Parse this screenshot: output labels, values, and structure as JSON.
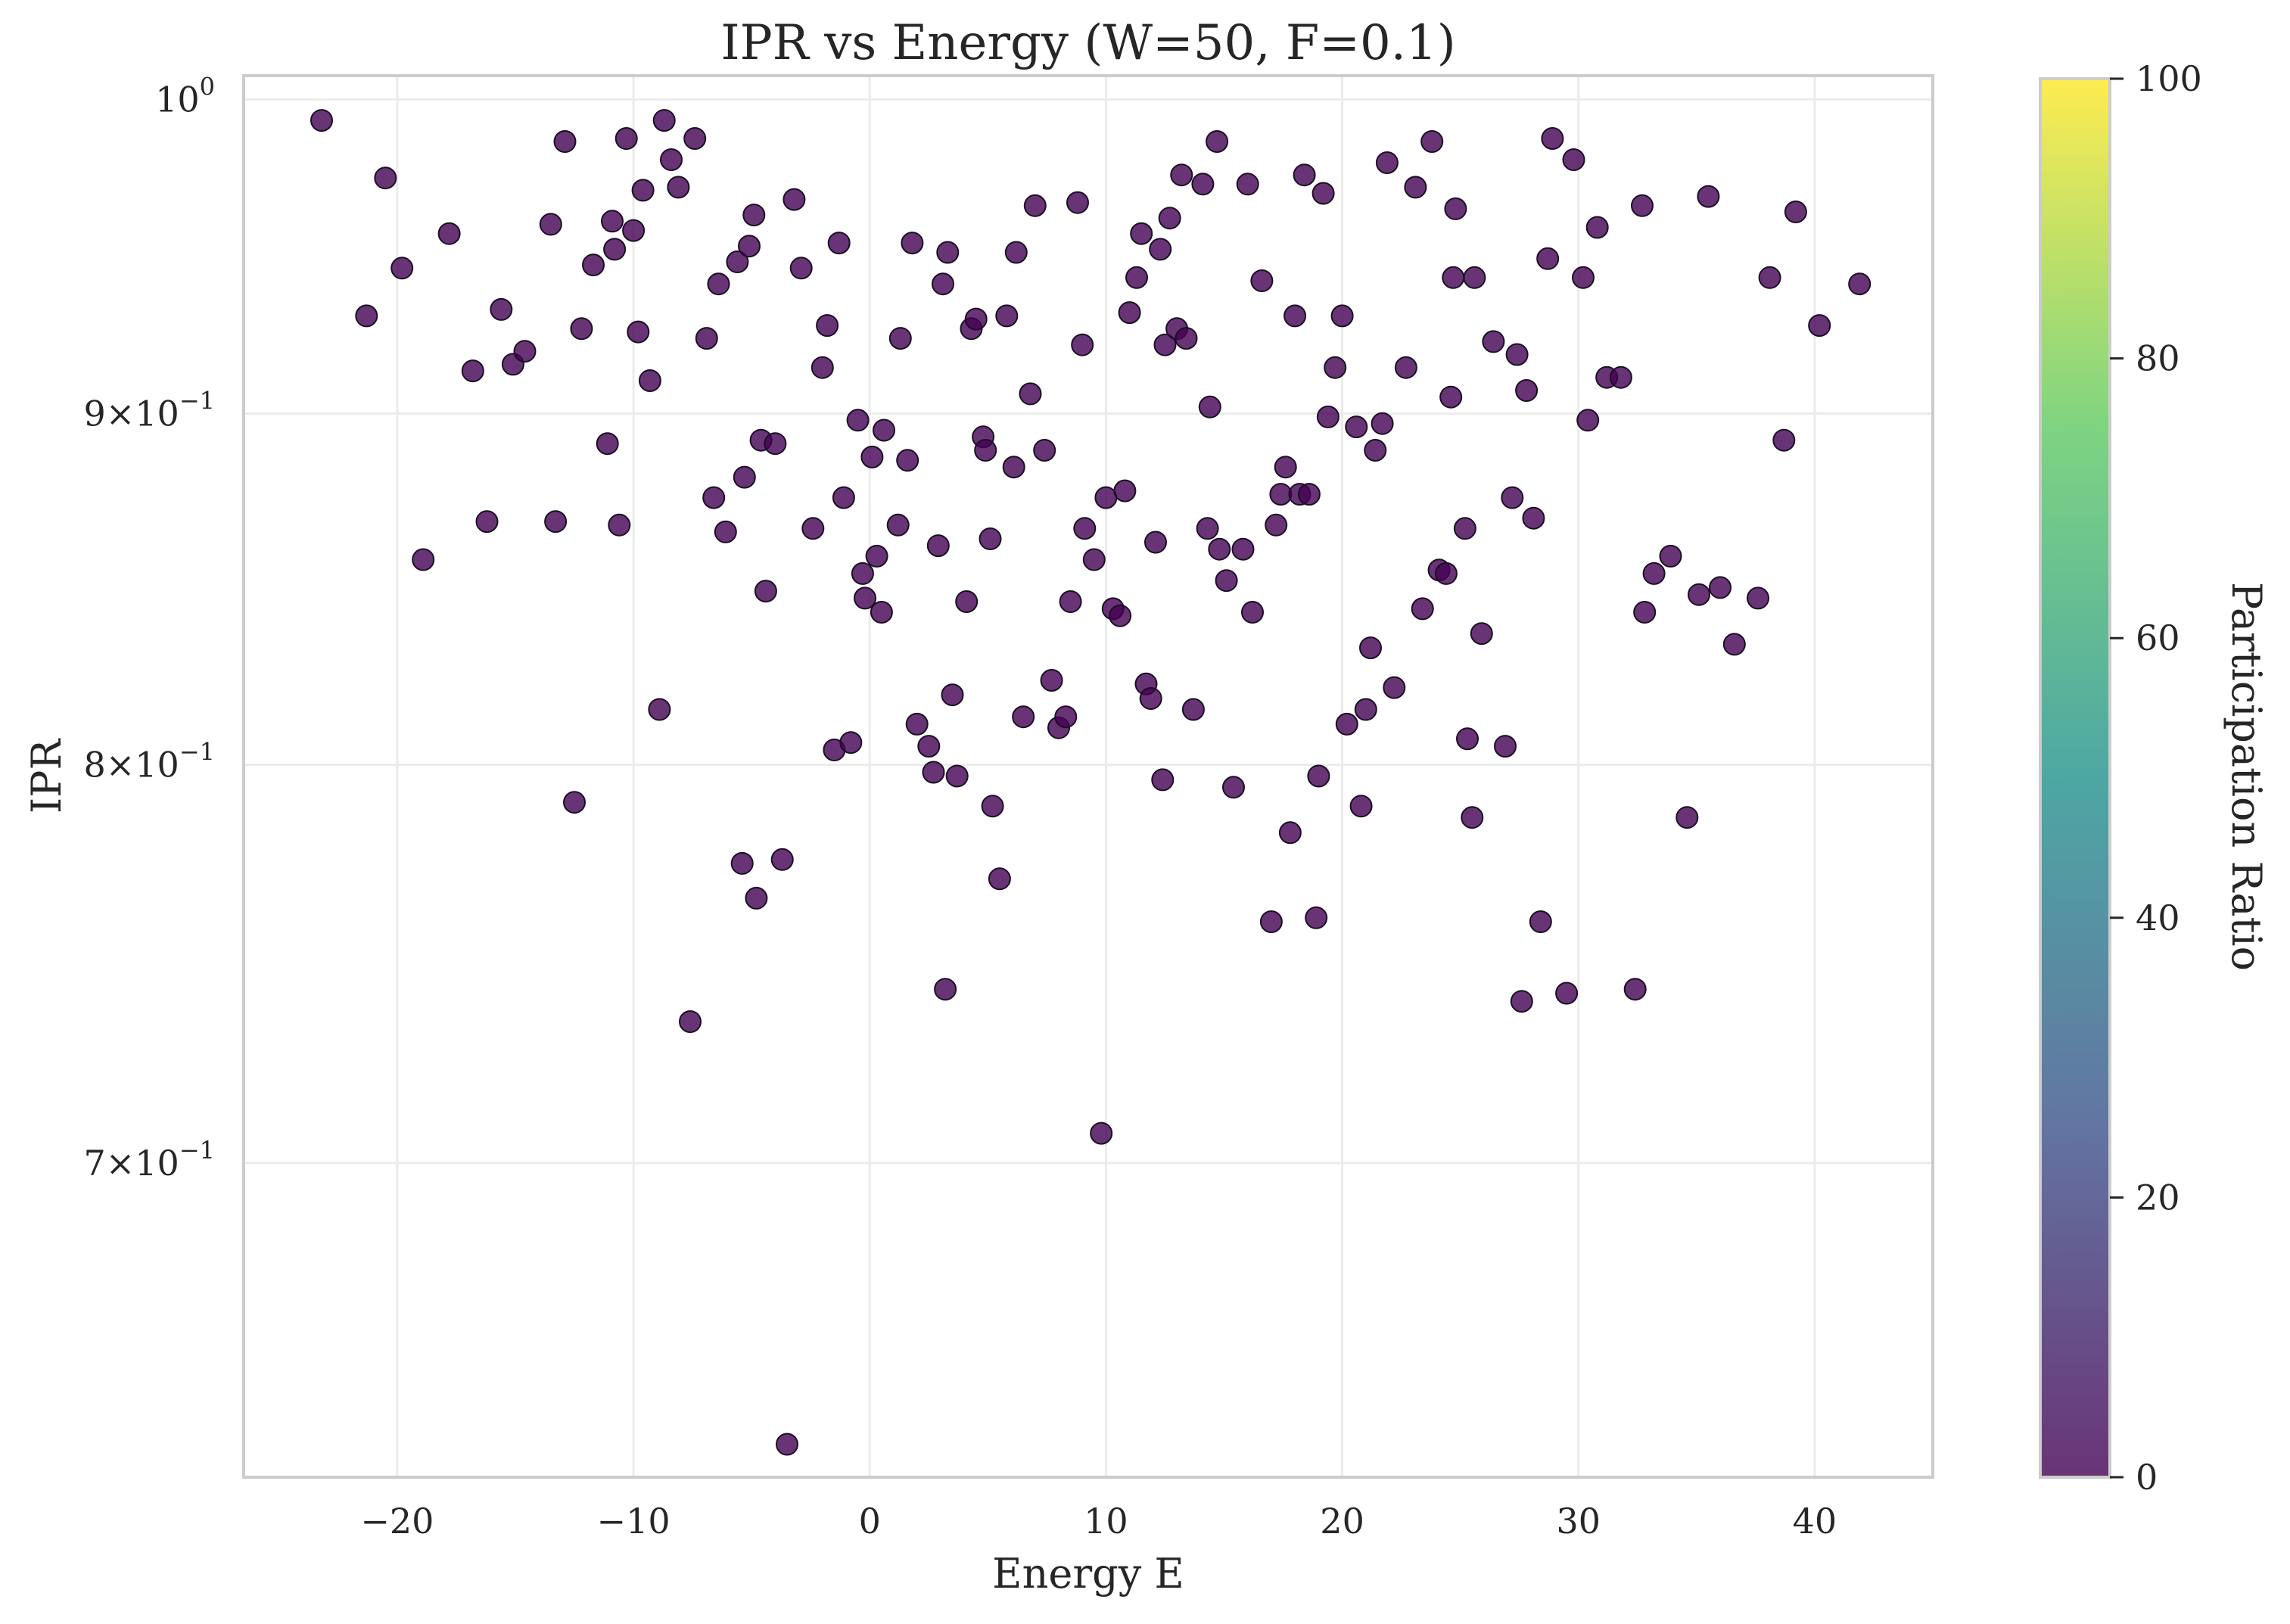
{
  "chart_data": {
    "type": "scatter",
    "title": "IPR vs Energy (W=50, F=0.1)",
    "xlabel": "Energy E",
    "ylabel": "IPR",
    "xlim": [
      -26.5,
      45
    ],
    "ylim": [
      0.63,
      1.008
    ],
    "yscale": "log",
    "grid": true,
    "x_ticks": [
      {
        "value": -20,
        "label": "−20"
      },
      {
        "value": -10,
        "label": "−10"
      },
      {
        "value": 0,
        "label": "0"
      },
      {
        "value": 10,
        "label": "10"
      },
      {
        "value": 20,
        "label": "20"
      },
      {
        "value": 30,
        "label": "30"
      },
      {
        "value": 40,
        "label": "40"
      }
    ],
    "y_ticks": [
      {
        "value": 1.0,
        "base": "10",
        "exp": "0"
      },
      {
        "value": 0.9,
        "base": "9×10",
        "exp": "−1"
      },
      {
        "value": 0.8,
        "base": "8×10",
        "exp": "−1"
      },
      {
        "value": 0.7,
        "base": "7×10",
        "exp": "−1"
      }
    ],
    "colorbar": {
      "label": "Participation Ratio",
      "range": [
        0,
        100
      ],
      "ticks": [
        "0",
        "20",
        "40",
        "60",
        "80",
        "100"
      ],
      "colormap": "viridis",
      "colors": [
        "#440154",
        "#3b528b",
        "#21918c",
        "#5ec962",
        "#fde725"
      ]
    },
    "marker_color": "#440154",
    "marker_opacity": 0.8,
    "points": [
      [
        -23.2,
        0.993
      ],
      [
        -21.3,
        0.93
      ],
      [
        -20.5,
        0.974
      ],
      [
        -19.8,
        0.945
      ],
      [
        -18.9,
        0.857
      ],
      [
        -17.8,
        0.956
      ],
      [
        -16.8,
        0.913
      ],
      [
        -16.2,
        0.868
      ],
      [
        -15.6,
        0.932
      ],
      [
        -15.1,
        0.915
      ],
      [
        -14.6,
        0.919
      ],
      [
        -13.5,
        0.959
      ],
      [
        -13.3,
        0.868
      ],
      [
        -12.9,
        0.986
      ],
      [
        -12.5,
        0.79
      ],
      [
        -12.2,
        0.926
      ],
      [
        -11.7,
        0.946
      ],
      [
        -11.1,
        0.891
      ],
      [
        -10.9,
        0.96
      ],
      [
        -10.8,
        0.951
      ],
      [
        -10.6,
        0.867
      ],
      [
        -10.3,
        0.987
      ],
      [
        -10.0,
        0.957
      ],
      [
        -9.8,
        0.925
      ],
      [
        -9.6,
        0.97
      ],
      [
        -9.3,
        0.91
      ],
      [
        -8.9,
        0.815
      ],
      [
        -8.7,
        0.993
      ],
      [
        -8.4,
        0.98
      ],
      [
        -8.1,
        0.971
      ],
      [
        -7.6,
        0.734
      ],
      [
        -7.4,
        0.987
      ],
      [
        -6.9,
        0.923
      ],
      [
        -6.6,
        0.875
      ],
      [
        -6.4,
        0.94
      ],
      [
        -6.1,
        0.865
      ],
      [
        -5.6,
        0.947
      ],
      [
        -5.4,
        0.774
      ],
      [
        -5.3,
        0.881
      ],
      [
        -5.1,
        0.952
      ],
      [
        -4.9,
        0.962
      ],
      [
        -4.8,
        0.765
      ],
      [
        -4.6,
        0.892
      ],
      [
        -4.4,
        0.848
      ],
      [
        -4.0,
        0.891
      ],
      [
        -3.7,
        0.775
      ],
      [
        -3.5,
        0.637
      ],
      [
        -3.2,
        0.967
      ],
      [
        -2.9,
        0.945
      ],
      [
        -2.4,
        0.866
      ],
      [
        -2.0,
        0.914
      ],
      [
        -1.8,
        0.927
      ],
      [
        -1.5,
        0.804
      ],
      [
        -1.3,
        0.953
      ],
      [
        -1.1,
        0.875
      ],
      [
        -0.8,
        0.806
      ],
      [
        -0.5,
        0.898
      ],
      [
        -0.3,
        0.853
      ],
      [
        -0.2,
        0.846
      ],
      [
        0.1,
        0.887
      ],
      [
        0.3,
        0.858
      ],
      [
        0.5,
        0.842
      ],
      [
        0.6,
        0.895
      ],
      [
        1.2,
        0.867
      ],
      [
        1.3,
        0.923
      ],
      [
        1.6,
        0.886
      ],
      [
        1.8,
        0.953
      ],
      [
        2.0,
        0.811
      ],
      [
        2.5,
        0.805
      ],
      [
        2.7,
        0.798
      ],
      [
        2.9,
        0.861
      ],
      [
        3.1,
        0.94
      ],
      [
        3.2,
        0.742
      ],
      [
        3.3,
        0.95
      ],
      [
        3.5,
        0.819
      ],
      [
        3.7,
        0.797
      ],
      [
        4.1,
        0.845
      ],
      [
        4.3,
        0.926
      ],
      [
        4.5,
        0.929
      ],
      [
        4.8,
        0.893
      ],
      [
        4.9,
        0.889
      ],
      [
        5.1,
        0.863
      ],
      [
        5.2,
        0.789
      ],
      [
        5.5,
        0.77
      ],
      [
        5.8,
        0.93
      ],
      [
        6.1,
        0.884
      ],
      [
        6.2,
        0.95
      ],
      [
        6.5,
        0.813
      ],
      [
        6.8,
        0.906
      ],
      [
        7.0,
        0.965
      ],
      [
        7.4,
        0.889
      ],
      [
        7.7,
        0.823
      ],
      [
        8.0,
        0.81
      ],
      [
        8.3,
        0.813
      ],
      [
        8.5,
        0.845
      ],
      [
        8.8,
        0.966
      ],
      [
        9.0,
        0.921
      ],
      [
        9.1,
        0.866
      ],
      [
        9.5,
        0.857
      ],
      [
        9.8,
        0.707
      ],
      [
        10.0,
        0.875
      ],
      [
        10.3,
        0.843
      ],
      [
        10.6,
        0.841
      ],
      [
        10.8,
        0.877
      ],
      [
        11.0,
        0.931
      ],
      [
        11.3,
        0.942
      ],
      [
        11.5,
        0.956
      ],
      [
        11.7,
        0.822
      ],
      [
        11.9,
        0.818
      ],
      [
        12.1,
        0.862
      ],
      [
        12.3,
        0.951
      ],
      [
        12.4,
        0.796
      ],
      [
        12.5,
        0.921
      ],
      [
        12.7,
        0.961
      ],
      [
        13.0,
        0.926
      ],
      [
        13.2,
        0.975
      ],
      [
        13.4,
        0.923
      ],
      [
        13.7,
        0.815
      ],
      [
        14.1,
        0.972
      ],
      [
        14.3,
        0.866
      ],
      [
        14.4,
        0.902
      ],
      [
        14.7,
        0.986
      ],
      [
        14.8,
        0.86
      ],
      [
        15.1,
        0.851
      ],
      [
        15.4,
        0.794
      ],
      [
        15.8,
        0.86
      ],
      [
        16.0,
        0.972
      ],
      [
        16.2,
        0.842
      ],
      [
        16.6,
        0.941
      ],
      [
        17.0,
        0.759
      ],
      [
        17.2,
        0.867
      ],
      [
        17.4,
        0.876
      ],
      [
        17.6,
        0.884
      ],
      [
        17.8,
        0.782
      ],
      [
        18.0,
        0.93
      ],
      [
        18.2,
        0.876
      ],
      [
        18.4,
        0.975
      ],
      [
        18.6,
        0.876
      ],
      [
        18.9,
        0.76
      ],
      [
        19.0,
        0.797
      ],
      [
        19.2,
        0.969
      ],
      [
        19.4,
        0.899
      ],
      [
        19.7,
        0.914
      ],
      [
        20.0,
        0.93
      ],
      [
        20.2,
        0.811
      ],
      [
        20.6,
        0.896
      ],
      [
        20.8,
        0.789
      ],
      [
        21.0,
        0.815
      ],
      [
        21.2,
        0.832
      ],
      [
        21.4,
        0.889
      ],
      [
        21.7,
        0.897
      ],
      [
        21.9,
        0.979
      ],
      [
        22.2,
        0.821
      ],
      [
        22.7,
        0.914
      ],
      [
        23.1,
        0.971
      ],
      [
        23.4,
        0.843
      ],
      [
        23.8,
        0.986
      ],
      [
        24.1,
        0.854
      ],
      [
        24.4,
        0.853
      ],
      [
        24.6,
        0.905
      ],
      [
        24.7,
        0.942
      ],
      [
        24.8,
        0.964
      ],
      [
        25.2,
        0.866
      ],
      [
        25.3,
        0.807
      ],
      [
        25.5,
        0.786
      ],
      [
        25.6,
        0.942
      ],
      [
        25.9,
        0.836
      ],
      [
        26.4,
        0.922
      ],
      [
        26.9,
        0.805
      ],
      [
        27.2,
        0.875
      ],
      [
        27.4,
        0.918
      ],
      [
        27.6,
        0.739
      ],
      [
        27.8,
        0.907
      ],
      [
        28.1,
        0.869
      ],
      [
        28.4,
        0.759
      ],
      [
        28.7,
        0.948
      ],
      [
        28.9,
        0.987
      ],
      [
        29.5,
        0.741
      ],
      [
        29.8,
        0.98
      ],
      [
        30.2,
        0.942
      ],
      [
        30.4,
        0.898
      ],
      [
        30.8,
        0.958
      ],
      [
        31.2,
        0.911
      ],
      [
        31.8,
        0.911
      ],
      [
        32.4,
        0.742
      ],
      [
        32.7,
        0.965
      ],
      [
        32.8,
        0.842
      ],
      [
        33.2,
        0.853
      ],
      [
        33.9,
        0.858
      ],
      [
        34.6,
        0.786
      ],
      [
        35.1,
        0.847
      ],
      [
        35.5,
        0.968
      ],
      [
        36.0,
        0.849
      ],
      [
        36.6,
        0.833
      ],
      [
        37.6,
        0.846
      ],
      [
        38.1,
        0.942
      ],
      [
        38.7,
        0.892
      ],
      [
        39.2,
        0.963
      ],
      [
        40.2,
        0.927
      ],
      [
        41.9,
        0.94
      ]
    ]
  }
}
